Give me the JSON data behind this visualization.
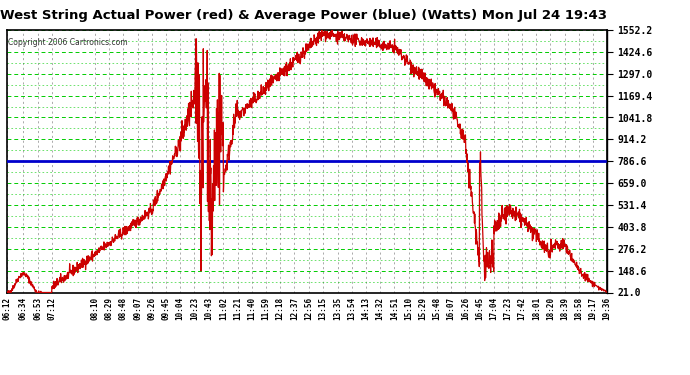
{
  "title": "West String Actual Power (red) & Average Power (blue) (Watts) Mon Jul 24 19:43",
  "copyright": "Copyright 2006 Cartronics.com",
  "bg_color": "#ffffff",
  "plot_bg_color": "#ffffff",
  "title_color": "#000000",
  "grid_color_h": "#00cc00",
  "grid_color_v": "#888888",
  "red_line_color": "#cc0000",
  "blue_line_color": "#0000cc",
  "yticks": [
    21.0,
    148.6,
    276.2,
    403.8,
    531.4,
    659.0,
    786.6,
    914.2,
    1041.8,
    1169.4,
    1297.0,
    1424.6,
    1552.2
  ],
  "ymin": 21.0,
  "ymax": 1552.2,
  "average_power": 786.6,
  "xtick_labels": [
    "06:12",
    "06:34",
    "06:53",
    "07:12",
    "08:10",
    "08:29",
    "08:48",
    "09:07",
    "09:26",
    "09:45",
    "10:04",
    "10:23",
    "10:43",
    "11:02",
    "11:21",
    "11:40",
    "11:59",
    "12:18",
    "12:37",
    "12:56",
    "13:15",
    "13:35",
    "13:54",
    "14:13",
    "14:32",
    "14:51",
    "15:10",
    "15:29",
    "15:48",
    "16:07",
    "16:26",
    "16:45",
    "17:04",
    "17:23",
    "17:42",
    "18:01",
    "18:20",
    "18:39",
    "18:58",
    "19:17",
    "19:36"
  ]
}
